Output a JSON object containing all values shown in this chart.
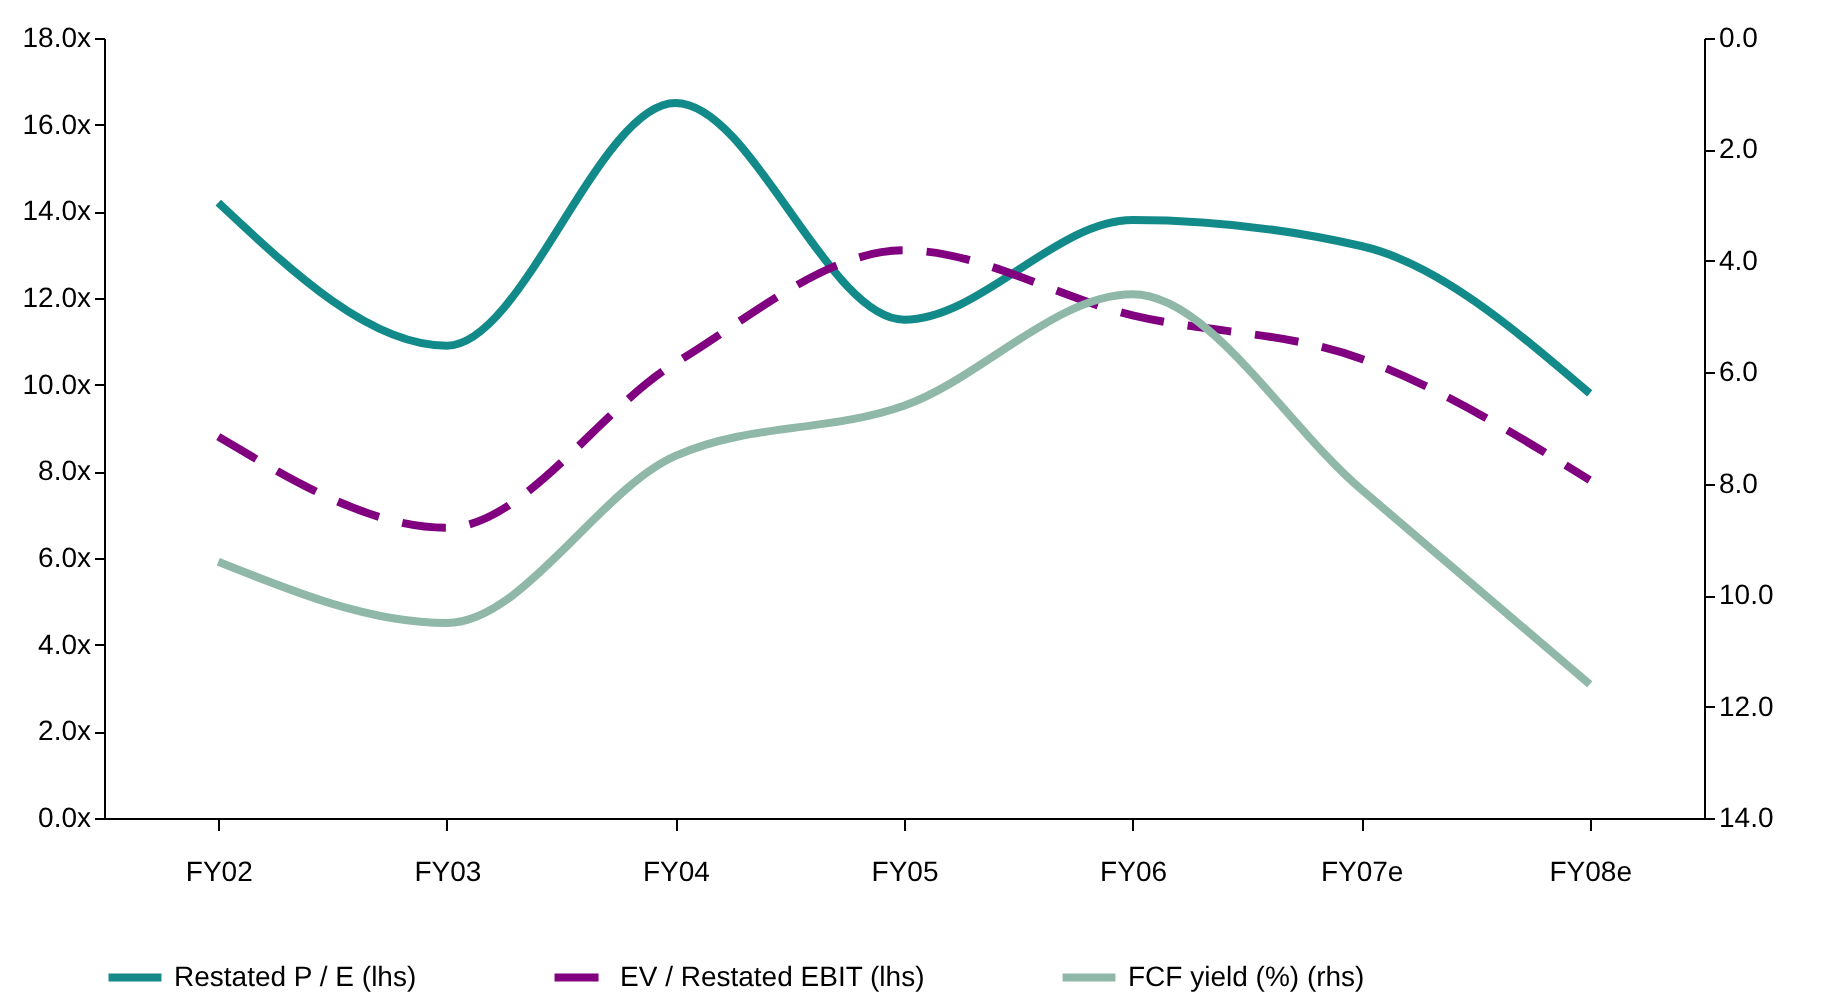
{
  "chart_data": {
    "type": "line",
    "categories": [
      "FY02",
      "FY03",
      "FY04",
      "FY05",
      "FY06",
      "FY07e",
      "FY08e"
    ],
    "series": [
      {
        "name": "Restated P / E (lhs)",
        "color": "#138a8a",
        "line_style": "solid",
        "values": [
          14.2,
          10.9,
          16.5,
          11.5,
          13.8,
          13.2,
          9.8
        ]
      },
      {
        "name": "EV / Restated EBIT (lhs)",
        "color": "#800080",
        "line_style": "dashed",
        "values": [
          8.8,
          6.7,
          10.5,
          13.1,
          11.6,
          10.6,
          7.8
        ]
      },
      {
        "name": "FCF yield (%) (rhs)",
        "color": "#8fb8a8",
        "line_style": "solid",
        "axis": "y2",
        "values": [
          9.4,
          10.5,
          7.5,
          6.6,
          4.6,
          8.1,
          11.6
        ]
      }
    ],
    "ylim": [
      0,
      18
    ],
    "yticks": [
      {
        "value": 0,
        "label": "0.0x"
      },
      {
        "value": 2,
        "label": "2.0x"
      },
      {
        "value": 4,
        "label": "4.0x"
      },
      {
        "value": 6,
        "label": "6.0x"
      },
      {
        "value": 8,
        "label": "8.0x"
      },
      {
        "value": 10,
        "label": "10.0x"
      },
      {
        "value": 12,
        "label": "12.0x"
      },
      {
        "value": 14,
        "label": "14.0x"
      },
      {
        "value": 16,
        "label": "16.0x"
      },
      {
        "value": 18,
        "label": "18.0x"
      }
    ],
    "y2lim": [
      14,
      0
    ],
    "y2ticks": [
      {
        "value": 0,
        "label": "0.0"
      },
      {
        "value": 2,
        "label": "2.0"
      },
      {
        "value": 4,
        "label": "4.0"
      },
      {
        "value": 6,
        "label": "6.0"
      },
      {
        "value": 8,
        "label": "8.0"
      },
      {
        "value": 10,
        "label": "10.0"
      },
      {
        "value": 12,
        "label": "12.0"
      },
      {
        "value": 14,
        "label": "14.0"
      }
    ],
    "grid": false,
    "legend": "bottom",
    "marker": "none"
  }
}
